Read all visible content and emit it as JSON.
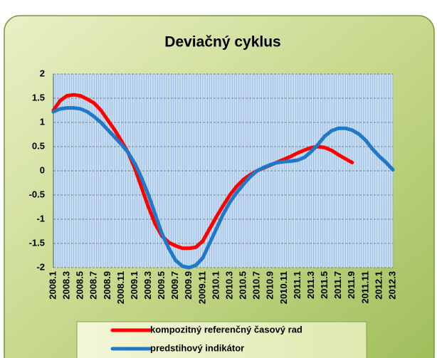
{
  "chart_data": {
    "type": "line",
    "title": "Deviačný cyklus",
    "categories": [
      "2008.1",
      null,
      "2008.3",
      null,
      "2008.5",
      null,
      "2008.7",
      null,
      "2008.9",
      null,
      "2008.11",
      null,
      "2009.1",
      null,
      "2009.3",
      null,
      "2009.5",
      null,
      "2009.7",
      null,
      "2009.9",
      null,
      "2009.11",
      null,
      "2010.1",
      null,
      "2010.3",
      null,
      "2010.5",
      null,
      "2010.7",
      null,
      "2010.9",
      null,
      "2010.11",
      null,
      "2011.1",
      null,
      "2011.3",
      null,
      "2011.5",
      null,
      "2011.7",
      null,
      "2011.9",
      null,
      "2011.11",
      null,
      "2012.1",
      null,
      "2012.3"
    ],
    "series": [
      {
        "name": "kompozitný referenčný časový rad",
        "color": "#ff0000",
        "values": [
          1.25,
          1.45,
          1.55,
          1.57,
          1.55,
          1.48,
          1.4,
          1.25,
          1.05,
          0.85,
          0.62,
          0.38,
          0.05,
          -0.35,
          -0.75,
          -1.1,
          -1.35,
          -1.48,
          -1.55,
          -1.6,
          -1.6,
          -1.58,
          -1.45,
          -1.2,
          -0.95,
          -0.72,
          -0.5,
          -0.32,
          -0.18,
          -0.08,
          0,
          0.06,
          0.12,
          0.18,
          0.24,
          0.3,
          0.37,
          0.43,
          0.48,
          0.5,
          0.48,
          0.42,
          0.33,
          0.25,
          0.17,
          null,
          null,
          null,
          null,
          null,
          null
        ]
      },
      {
        "name": "predstihový indikátor",
        "color": "#1f78c8",
        "values": [
          1.22,
          1.28,
          1.3,
          1.3,
          1.28,
          1.22,
          1.12,
          1.0,
          0.85,
          0.7,
          0.55,
          0.38,
          0.15,
          -0.15,
          -0.5,
          -0.9,
          -1.3,
          -1.6,
          -1.85,
          -1.97,
          -2.0,
          -1.95,
          -1.8,
          -1.5,
          -1.2,
          -0.9,
          -0.65,
          -0.45,
          -0.28,
          -0.12,
          0,
          0.07,
          0.13,
          0.17,
          0.19,
          0.2,
          0.22,
          0.28,
          0.4,
          0.55,
          0.72,
          0.83,
          0.88,
          0.88,
          0.84,
          0.76,
          0.63,
          0.45,
          0.3,
          0.17,
          0.02
        ]
      }
    ],
    "ylim": [
      -2,
      2
    ],
    "yticks": [
      2,
      1.5,
      1,
      0.5,
      0,
      -0.5,
      -1,
      -1.5,
      -2
    ],
    "grid": true
  }
}
